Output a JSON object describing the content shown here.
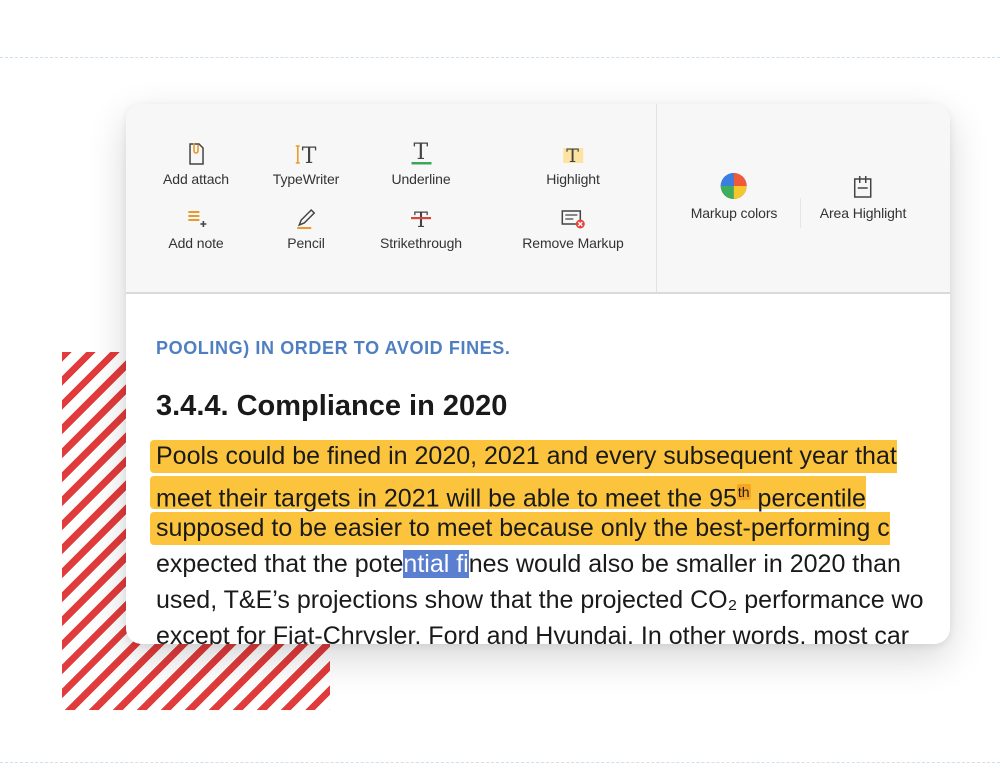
{
  "toolbar": {
    "tools": {
      "add_attach": "Add attach",
      "typewriter": "TypeWriter",
      "underline": "Underline",
      "highlight": "Highlight",
      "add_note": "Add note",
      "pencil": "Pencil",
      "strikethrough": "Strikethrough",
      "remove_markup": "Remove Markup",
      "markup_colors": "Markup colors",
      "area_highlight": "Area Highlight"
    }
  },
  "document": {
    "kicker": "POOLING) IN ORDER TO AVOID FINES.",
    "heading": "3.4.4. Compliance in 2020",
    "line1": "Pools could be fined in 2020, 2021 and every subsequent year that",
    "line2_a": "meet their targets in 2021 will be able to meet the 95",
    "line2_sup": "th",
    "line2_b": " percentile",
    "line3": "supposed to be easier to meet because only the best-performing c",
    "line4_a": "expected that the pote",
    "line4_sel": "ntial fi",
    "line4_b": "nes would also be smaller in 2020 than",
    "line5": "used, T&E’s projections show that the projected CO₂ performance wo",
    "line6": "except for Fiat-Chrysler, Ford and Hyundai. In other words, most car"
  },
  "colors": {
    "highlight": "#fbc43c",
    "selection": "#5a7fd0",
    "kicker": "#4f7fc0",
    "stripe": "#e23b3b"
  }
}
